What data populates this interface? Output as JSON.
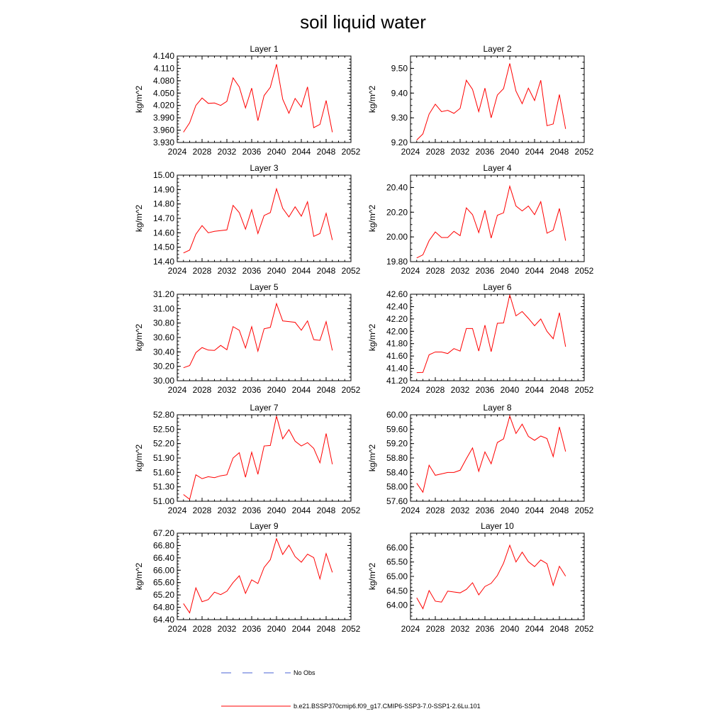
{
  "title": "soil liquid water",
  "colors": {
    "model": "#ff0000",
    "obs": "#4a63d6",
    "axis": "#000000"
  },
  "legend": {
    "obs_label": "No Obs",
    "model_label": "b.e21.BSSP370cmip6.f09_g17.CMIP6-SSP3-7.0-SSP1-2.6Lu.101"
  },
  "x_ticks": [
    "2024",
    "2028",
    "2032",
    "2036",
    "2040",
    "2044",
    "2048",
    "2052"
  ],
  "chart_data": [
    {
      "type": "line",
      "title": "Layer 1",
      "ylabel": "kg/m^2",
      "xlim": [
        2024,
        2052
      ],
      "ylim": [
        3.93,
        4.14
      ],
      "yticks": [
        "3.930",
        "3.960",
        "3.990",
        "4.020",
        "4.050",
        "4.080",
        "4.110",
        "4.140"
      ],
      "grid": false,
      "x": [
        2025,
        2026,
        2027,
        2028,
        2029,
        2030,
        2031,
        2032,
        2033,
        2034,
        2035,
        2036,
        2037,
        2038,
        2039,
        2040,
        2041,
        2042,
        2043,
        2044,
        2045,
        2046,
        2047,
        2048,
        2049
      ],
      "series": [
        {
          "name": "b.e21.BSSP370cmip6.f09_g17.CMIP6-SSP3-7.0-SSP1-2.6Lu.101",
          "values": [
            3.955,
            3.978,
            4.02,
            4.038,
            4.025,
            4.026,
            4.02,
            4.03,
            4.087,
            4.065,
            4.014,
            4.062,
            3.983,
            4.044,
            4.064,
            4.12,
            4.035,
            4.001,
            4.037,
            4.016,
            4.065,
            3.966,
            3.974,
            4.032,
            3.955
          ]
        }
      ]
    },
    {
      "type": "line",
      "title": "Layer 2",
      "ylabel": "kg/m^2",
      "xlim": [
        2024,
        2052
      ],
      "ylim": [
        9.2,
        9.55
      ],
      "yticks": [
        "9.20",
        "9.30",
        "9.40",
        "9.50"
      ],
      "grid": false,
      "x": [
        2025,
        2026,
        2027,
        2028,
        2029,
        2030,
        2031,
        2032,
        2033,
        2034,
        2035,
        2036,
        2037,
        2038,
        2039,
        2040,
        2041,
        2042,
        2043,
        2044,
        2045,
        2046,
        2047,
        2048,
        2049
      ],
      "series": [
        {
          "name": "b.e21.BSSP370cmip6.f09_g17.CMIP6-SSP3-7.0-SSP1-2.6Lu.101",
          "values": [
            9.21,
            9.235,
            9.315,
            9.355,
            9.325,
            9.33,
            9.318,
            9.338,
            9.452,
            9.415,
            9.325,
            9.42,
            9.3,
            9.392,
            9.418,
            9.52,
            9.408,
            9.357,
            9.42,
            9.37,
            9.452,
            9.268,
            9.275,
            9.394,
            9.255
          ]
        }
      ]
    },
    {
      "type": "line",
      "title": "Layer 3",
      "ylabel": "kg/m^2",
      "xlim": [
        2024,
        2052
      ],
      "ylim": [
        14.4,
        15.0
      ],
      "yticks": [
        "14.40",
        "14.50",
        "14.60",
        "14.70",
        "14.80",
        "14.90",
        "15.00"
      ],
      "grid": false,
      "x": [
        2025,
        2026,
        2027,
        2028,
        2029,
        2030,
        2031,
        2032,
        2033,
        2034,
        2035,
        2036,
        2037,
        2038,
        2039,
        2040,
        2041,
        2042,
        2043,
        2044,
        2045,
        2046,
        2047,
        2048,
        2049
      ],
      "series": [
        {
          "name": "b.e21.BSSP370cmip6.f09_g17.CMIP6-SSP3-7.0-SSP1-2.6Lu.101",
          "values": [
            14.46,
            14.48,
            14.59,
            14.65,
            14.6,
            14.61,
            14.615,
            14.62,
            14.79,
            14.74,
            14.625,
            14.76,
            14.595,
            14.72,
            14.74,
            14.905,
            14.77,
            14.71,
            14.78,
            14.715,
            14.815,
            14.575,
            14.595,
            14.735,
            14.55
          ]
        }
      ]
    },
    {
      "type": "line",
      "title": "Layer 4",
      "ylabel": "kg/m^2",
      "xlim": [
        2024,
        2052
      ],
      "ylim": [
        19.8,
        20.5
      ],
      "yticks": [
        "19.80",
        "20.00",
        "20.20",
        "20.40"
      ],
      "grid": false,
      "x": [
        2025,
        2026,
        2027,
        2028,
        2029,
        2030,
        2031,
        2032,
        2033,
        2034,
        2035,
        2036,
        2037,
        2038,
        2039,
        2040,
        2041,
        2042,
        2043,
        2044,
        2045,
        2046,
        2047,
        2048,
        2049
      ],
      "series": [
        {
          "name": "b.e21.BSSP370cmip6.f09_g17.CMIP6-SSP3-7.0-SSP1-2.6Lu.101",
          "values": [
            19.83,
            19.855,
            19.97,
            20.04,
            19.995,
            19.995,
            20.045,
            20.01,
            20.235,
            20.18,
            20.035,
            20.215,
            19.99,
            20.175,
            20.195,
            20.41,
            20.25,
            20.21,
            20.25,
            20.18,
            20.285,
            20.03,
            20.055,
            20.23,
            19.97
          ]
        }
      ]
    },
    {
      "type": "line",
      "title": "Layer 5",
      "ylabel": "kg/m^2",
      "xlim": [
        2024,
        2052
      ],
      "ylim": [
        30.0,
        31.2
      ],
      "yticks": [
        "30.00",
        "30.20",
        "30.40",
        "30.60",
        "30.80",
        "31.00",
        "31.20"
      ],
      "grid": false,
      "x": [
        2025,
        2026,
        2027,
        2028,
        2029,
        2030,
        2031,
        2032,
        2033,
        2034,
        2035,
        2036,
        2037,
        2038,
        2039,
        2040,
        2041,
        2042,
        2043,
        2044,
        2045,
        2046,
        2047,
        2048,
        2049
      ],
      "series": [
        {
          "name": "b.e21.BSSP370cmip6.f09_g17.CMIP6-SSP3-7.0-SSP1-2.6Lu.101",
          "values": [
            30.18,
            30.21,
            30.39,
            30.46,
            30.425,
            30.42,
            30.49,
            30.43,
            30.75,
            30.7,
            30.455,
            30.75,
            30.41,
            30.72,
            30.74,
            31.07,
            30.83,
            30.82,
            30.81,
            30.7,
            30.83,
            30.57,
            30.56,
            30.82,
            30.42
          ]
        }
      ]
    },
    {
      "type": "line",
      "title": "Layer 6",
      "ylabel": "kg/m^2",
      "xlim": [
        2024,
        2052
      ],
      "ylim": [
        41.2,
        42.6
      ],
      "yticks": [
        "41.20",
        "41.40",
        "41.60",
        "41.80",
        "42.00",
        "42.20",
        "42.40",
        "42.60"
      ],
      "grid": false,
      "x": [
        2025,
        2026,
        2027,
        2028,
        2029,
        2030,
        2031,
        2032,
        2033,
        2034,
        2035,
        2036,
        2037,
        2038,
        2039,
        2040,
        2041,
        2042,
        2043,
        2044,
        2045,
        2046,
        2047,
        2048,
        2049
      ],
      "series": [
        {
          "name": "b.e21.BSSP370cmip6.f09_g17.CMIP6-SSP3-7.0-SSP1-2.6Lu.101",
          "values": [
            41.33,
            41.335,
            41.62,
            41.665,
            41.665,
            41.64,
            41.72,
            41.68,
            42.045,
            42.045,
            41.68,
            42.1,
            41.67,
            42.13,
            42.135,
            42.59,
            42.25,
            42.32,
            42.21,
            42.09,
            42.2,
            42.0,
            41.88,
            42.3,
            41.75
          ]
        }
      ]
    },
    {
      "type": "line",
      "title": "Layer 7",
      "ylabel": "kg/m^2",
      "xlim": [
        2024,
        2052
      ],
      "ylim": [
        51.0,
        52.8
      ],
      "yticks": [
        "51.00",
        "51.30",
        "51.60",
        "51.90",
        "52.20",
        "52.50",
        "52.80"
      ],
      "grid": false,
      "x": [
        2025,
        2026,
        2027,
        2028,
        2029,
        2030,
        2031,
        2032,
        2033,
        2034,
        2035,
        2036,
        2037,
        2038,
        2039,
        2040,
        2041,
        2042,
        2043,
        2044,
        2045,
        2046,
        2047,
        2048,
        2049
      ],
      "series": [
        {
          "name": "b.e21.BSSP370cmip6.f09_g17.CMIP6-SSP3-7.0-SSP1-2.6Lu.101",
          "values": [
            51.14,
            51.04,
            51.55,
            51.47,
            51.51,
            51.49,
            51.53,
            51.55,
            51.9,
            52.01,
            51.5,
            52.02,
            51.56,
            52.15,
            52.16,
            52.77,
            52.3,
            52.49,
            52.25,
            52.15,
            52.22,
            52.1,
            51.8,
            52.41,
            51.77
          ]
        }
      ]
    },
    {
      "type": "line",
      "title": "Layer 8",
      "ylabel": "kg/m^2",
      "xlim": [
        2024,
        2052
      ],
      "ylim": [
        57.6,
        60.0
      ],
      "yticks": [
        "57.60",
        "58.00",
        "58.40",
        "58.80",
        "59.20",
        "59.60",
        "60.00"
      ],
      "grid": false,
      "x": [
        2025,
        2026,
        2027,
        2028,
        2029,
        2030,
        2031,
        2032,
        2033,
        2034,
        2035,
        2036,
        2037,
        2038,
        2039,
        2040,
        2041,
        2042,
        2043,
        2044,
        2045,
        2046,
        2047,
        2048,
        2049
      ],
      "series": [
        {
          "name": "b.e21.BSSP370cmip6.f09_g17.CMIP6-SSP3-7.0-SSP1-2.6Lu.101",
          "values": [
            58.1,
            57.85,
            58.6,
            58.32,
            58.36,
            58.4,
            58.4,
            58.46,
            58.78,
            59.08,
            58.43,
            58.97,
            58.64,
            59.23,
            59.33,
            59.96,
            59.48,
            59.74,
            59.4,
            59.29,
            59.41,
            59.34,
            58.84,
            59.66,
            58.98
          ]
        }
      ]
    },
    {
      "type": "line",
      "title": "Layer 9",
      "ylabel": "kg/m^2",
      "xlim": [
        2024,
        2052
      ],
      "ylim": [
        64.4,
        67.2
      ],
      "yticks": [
        "64.40",
        "64.80",
        "65.20",
        "65.60",
        "66.00",
        "66.40",
        "66.80",
        "67.20"
      ],
      "grid": false,
      "x": [
        2025,
        2026,
        2027,
        2028,
        2029,
        2030,
        2031,
        2032,
        2033,
        2034,
        2035,
        2036,
        2037,
        2038,
        2039,
        2040,
        2041,
        2042,
        2043,
        2044,
        2045,
        2046,
        2047,
        2048,
        2049
      ],
      "series": [
        {
          "name": "b.e21.BSSP370cmip6.f09_g17.CMIP6-SSP3-7.0-SSP1-2.6Lu.101",
          "values": [
            64.92,
            64.62,
            65.43,
            64.98,
            65.05,
            65.29,
            65.21,
            65.32,
            65.6,
            65.82,
            65.25,
            65.69,
            65.57,
            66.09,
            66.34,
            67.02,
            66.51,
            66.81,
            66.44,
            66.26,
            66.52,
            66.41,
            65.72,
            66.54,
            65.93
          ]
        }
      ]
    },
    {
      "type": "line",
      "title": "Layer 10",
      "ylabel": "kg/m^2",
      "xlim": [
        2024,
        2052
      ],
      "ylim": [
        63.5,
        66.5
      ],
      "yticks": [
        "64.00",
        "64.50",
        "65.00",
        "65.50",
        "66.00"
      ],
      "grid": false,
      "x": [
        2025,
        2026,
        2027,
        2028,
        2029,
        2030,
        2031,
        2032,
        2033,
        2034,
        2035,
        2036,
        2037,
        2038,
        2039,
        2040,
        2041,
        2042,
        2043,
        2044,
        2045,
        2046,
        2047,
        2048,
        2049
      ],
      "series": [
        {
          "name": "b.e21.BSSP370cmip6.f09_g17.CMIP6-SSP3-7.0-SSP1-2.6Lu.101",
          "values": [
            64.26,
            63.88,
            64.51,
            64.14,
            64.11,
            64.49,
            64.46,
            64.43,
            64.55,
            64.78,
            64.36,
            64.65,
            64.76,
            65.03,
            65.46,
            66.08,
            65.5,
            65.84,
            65.51,
            65.34,
            65.57,
            65.44,
            64.69,
            65.35,
            65.01
          ]
        }
      ]
    }
  ]
}
